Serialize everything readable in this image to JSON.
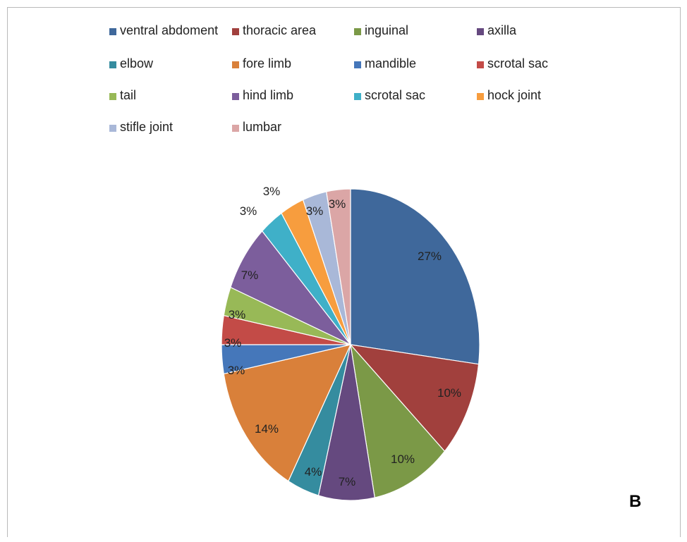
{
  "panel_label": "B",
  "chart_data": {
    "type": "pie",
    "title": "",
    "legend_position": "top",
    "start_angle_deg": 0,
    "direction": "clockwise",
    "slices": [
      {
        "label": "ventral abdoment",
        "value": 27,
        "display": "27%",
        "color": "#3f689b"
      },
      {
        "label": "thoracic area",
        "value": 10,
        "display": "10%",
        "color": "#a1403d"
      },
      {
        "label": "inguinal",
        "value": 10,
        "display": "10%",
        "color": "#7b9947"
      },
      {
        "label": "axilla",
        "value": 7,
        "display": "7%",
        "color": "#65497f"
      },
      {
        "label": "elbow",
        "value": 4,
        "display": "4%",
        "color": "#358c9f"
      },
      {
        "label": "fore limb",
        "value": 14,
        "display": "14%",
        "color": "#d9803a"
      },
      {
        "label": "mandible",
        "value": 3,
        "display": "3%",
        "color": "#4577ba"
      },
      {
        "label": "scrotal sac",
        "value": 3,
        "display": "3%",
        "color": "#c34b47"
      },
      {
        "label": "tail",
        "value": 3,
        "display": "3%",
        "color": "#98b957"
      },
      {
        "label": "hind limb",
        "value": 7,
        "display": "7%",
        "color": "#7c5e9c"
      },
      {
        "label": "scrotal sac",
        "value": 3,
        "display": "3%",
        "color": "#3fb0c8"
      },
      {
        "label": "hock joint",
        "value": 3,
        "display": "3%",
        "color": "#f79d3e"
      },
      {
        "label": "stifle joint",
        "value": 3,
        "display": "3%",
        "color": "#a9b8d8"
      },
      {
        "label": "lumbar",
        "value": 3,
        "display": "3%",
        "color": "#dba6a6"
      }
    ]
  }
}
